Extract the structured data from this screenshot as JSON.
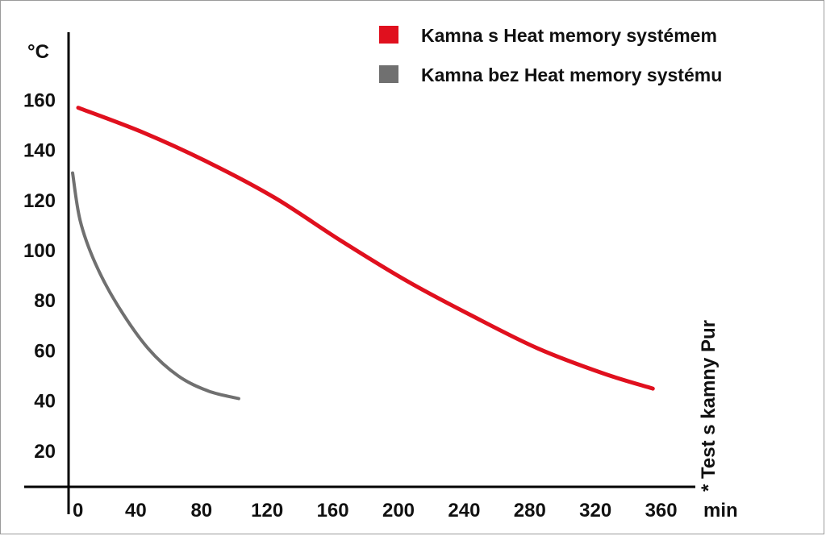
{
  "chart_data": {
    "type": "line",
    "ylabel": "°C",
    "xunit": "min",
    "note": "* Test s kamny Pur",
    "xticks": [
      0,
      40,
      80,
      120,
      160,
      200,
      240,
      280,
      320,
      360
    ],
    "yticks": [
      20,
      40,
      60,
      80,
      100,
      120,
      140,
      160
    ],
    "xlim": [
      0,
      360
    ],
    "ylim": [
      0,
      180
    ],
    "grid": false,
    "legend_position": "top-right",
    "series": [
      {
        "name": "Kamna s Heat memory systémem",
        "color": "#e0101e",
        "x": [
          0,
          40,
          80,
          120,
          160,
          200,
          240,
          280,
          320,
          350
        ],
        "y": [
          157,
          147,
          135,
          121,
          104,
          88,
          74,
          61,
          51,
          45
        ]
      },
      {
        "name": "Kamna bez Heat memory systému",
        "color": "#707070",
        "x": [
          0,
          5,
          15,
          30,
          50,
          70,
          90,
          110
        ],
        "y": [
          131,
          112,
          95,
          78,
          61,
          50,
          44,
          41
        ]
      }
    ]
  }
}
